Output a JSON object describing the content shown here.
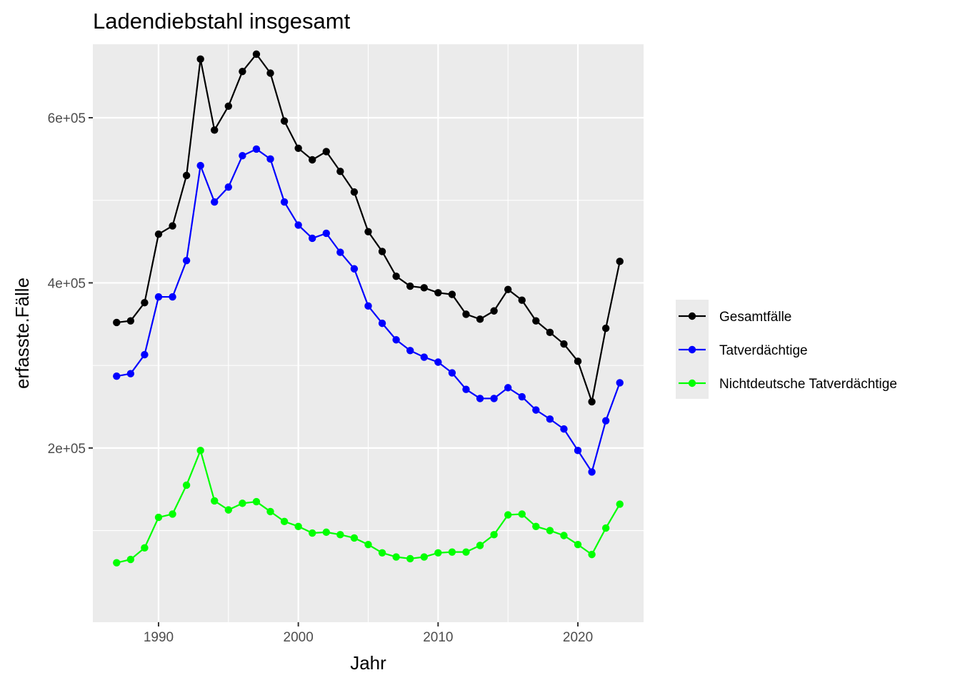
{
  "chart_data": {
    "type": "line",
    "title": "Ladendiebstahl insgesamt",
    "xlabel": "Jahr",
    "ylabel": "erfasste.Fälle",
    "xlim": [
      1985.3,
      2024.7
    ],
    "ylim": [
      -11000,
      689000
    ],
    "x_ticks": [
      1990,
      2000,
      2010,
      2020
    ],
    "x_tick_labels": [
      "1990",
      "2000",
      "2010",
      "2020"
    ],
    "x_minor_ticks": [
      1985,
      1995,
      2005,
      2015
    ],
    "y_ticks": [
      200000,
      400000,
      600000
    ],
    "y_tick_labels": [
      "2e+05",
      "4e+05",
      "6e+05"
    ],
    "y_minor_ticks": [
      100000,
      300000,
      500000
    ],
    "grid": true,
    "legend_position": "right",
    "x": [
      1987,
      1988,
      1989,
      1990,
      1991,
      1992,
      1993,
      1994,
      1995,
      1996,
      1997,
      1998,
      1999,
      2000,
      2001,
      2002,
      2003,
      2004,
      2005,
      2006,
      2007,
      2008,
      2009,
      2010,
      2011,
      2012,
      2013,
      2014,
      2015,
      2016,
      2017,
      2018,
      2019,
      2020,
      2021,
      2022,
      2023
    ],
    "series": [
      {
        "name": "Gesamtfälle",
        "color": "#000000",
        "values": [
          352000,
          354000,
          376000,
          459000,
          469000,
          530000,
          671000,
          585000,
          614000,
          656000,
          677000,
          654000,
          596000,
          563000,
          549000,
          559000,
          535000,
          510000,
          462000,
          438000,
          408000,
          396000,
          394000,
          388000,
          386000,
          362000,
          356000,
          366000,
          392000,
          379000,
          354000,
          340000,
          326000,
          305000,
          256000,
          345000,
          426000
        ]
      },
      {
        "name": "Tatverdächtige",
        "color": "#0000ff",
        "values": [
          287000,
          290000,
          313000,
          383000,
          383000,
          427000,
          542000,
          498000,
          516000,
          554000,
          562000,
          550000,
          498000,
          470000,
          454000,
          460000,
          437000,
          417000,
          372000,
          351000,
          331000,
          318000,
          310000,
          304000,
          291000,
          271000,
          260000,
          260000,
          273000,
          262000,
          246000,
          235000,
          223000,
          197000,
          171000,
          233000,
          279000
        ]
      },
      {
        "name": "Nichtdeutsche Tatverdächtige",
        "color": "#00ff00",
        "values": [
          61000,
          65000,
          79000,
          116000,
          120000,
          155000,
          197000,
          136000,
          125000,
          133000,
          135000,
          123000,
          111000,
          105000,
          97000,
          98000,
          95000,
          91000,
          83000,
          73000,
          68000,
          66000,
          68000,
          73000,
          74000,
          74000,
          82000,
          95000,
          119000,
          120000,
          105000,
          100000,
          94000,
          83000,
          71000,
          103000,
          132000
        ]
      }
    ]
  }
}
